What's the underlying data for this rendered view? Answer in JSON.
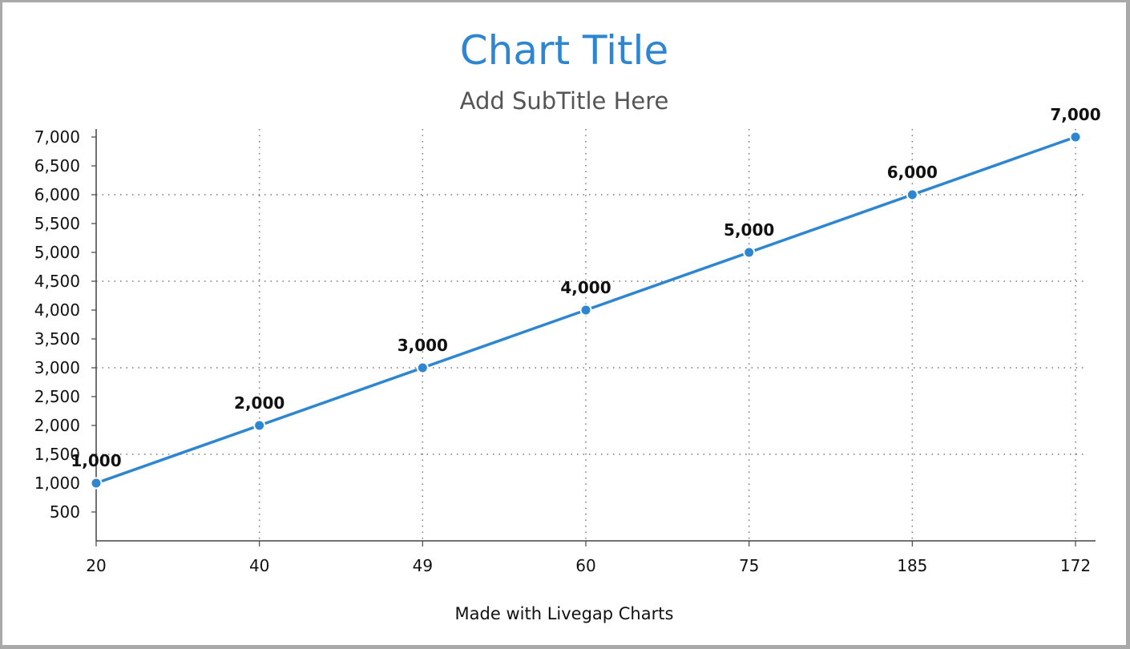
{
  "chart_data": {
    "type": "line",
    "title": "Chart Title",
    "subtitle": "Add SubTitle Here",
    "categories": [
      "20",
      "40",
      "49",
      "60",
      "75",
      "185",
      "172"
    ],
    "series": [
      {
        "values": [
          1000,
          2000,
          3000,
          4000,
          5000,
          6000,
          7000
        ]
      }
    ],
    "data_labels": [
      "1,000",
      "2,000",
      "3,000",
      "4,000",
      "5,000",
      "6,000",
      "7,000"
    ],
    "y_ticks": [
      500,
      1000,
      1500,
      2000,
      2500,
      3000,
      3500,
      4000,
      4500,
      5000,
      5500,
      6000,
      6500,
      7000
    ],
    "y_tick_labels": [
      "500",
      "1,000",
      "1,500",
      "2,000",
      "2,500",
      "3,000",
      "3,500",
      "4,000",
      "4,500",
      "5,000",
      "5,500",
      "6,000",
      "6,500",
      "7,000"
    ],
    "ylim": [
      0,
      7000
    ],
    "gridlines_y": [
      1500,
      3000,
      4500,
      6000
    ],
    "grid": "dotted",
    "legend": "none",
    "xlabel": "",
    "ylabel": ""
  },
  "footer": "Made with Livegap Charts",
  "colors": {
    "title": "#2e86d1",
    "subtitle": "#555555",
    "series": "#2e86d1",
    "axis": "#444444",
    "grid": "#777777",
    "text": "#111111"
  }
}
